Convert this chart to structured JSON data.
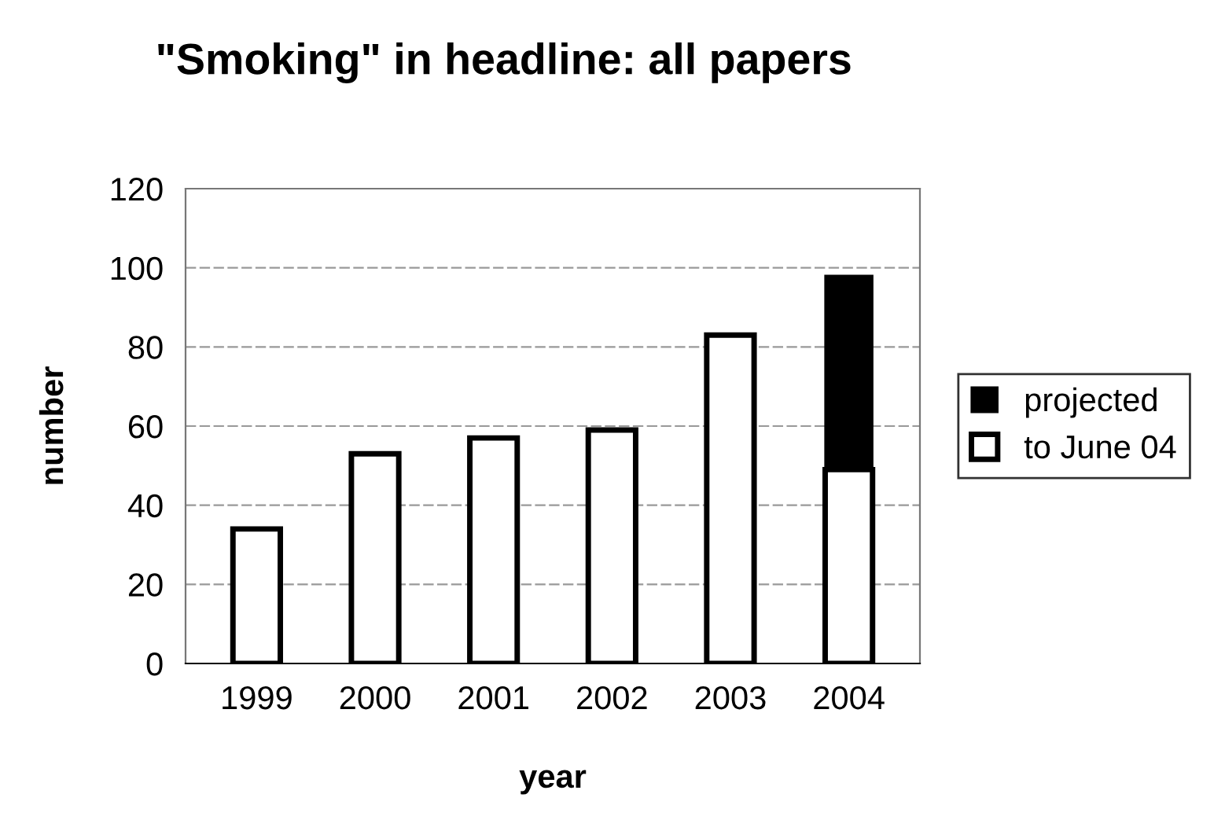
{
  "chart_data": {
    "type": "bar",
    "title": "\"Smoking\" in headline: all papers",
    "xlabel": "year",
    "ylabel": "number",
    "categories": [
      "1999",
      "2000",
      "2001",
      "2002",
      "2003",
      "2004"
    ],
    "series": [
      {
        "name": "to June 04",
        "color": "#ffffff",
        "values": [
          34,
          53,
          57,
          59,
          83,
          49
        ]
      },
      {
        "name": "projected",
        "color": "#000000",
        "values": [
          null,
          null,
          null,
          null,
          null,
          49
        ]
      }
    ],
    "stacked": true,
    "ylim": [
      0,
      120
    ],
    "yticks": [
      0,
      20,
      40,
      60,
      80,
      100,
      120
    ],
    "grid": "y",
    "legend": "right"
  }
}
